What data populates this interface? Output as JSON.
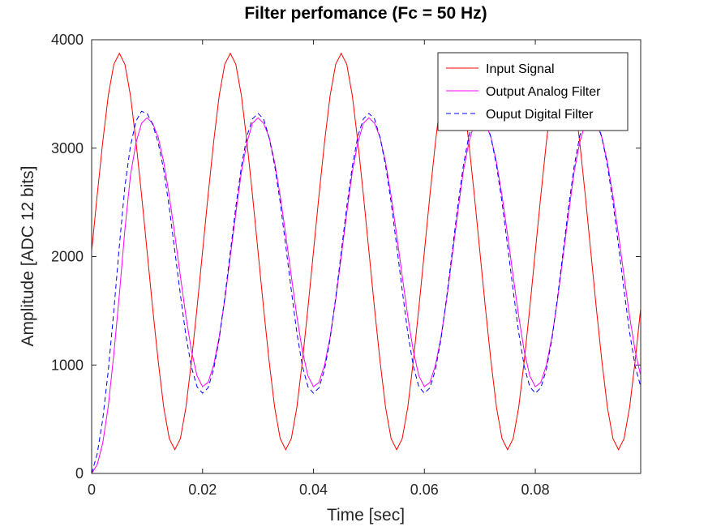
{
  "chart_data": {
    "type": "line",
    "title": "Filter perfomance (Fc = 50 Hz)",
    "xlabel": "Time [sec]",
    "ylabel": "Amplitude [ADC 12 bits]",
    "xlim": [
      0,
      0.099
    ],
    "ylim": [
      0,
      4000
    ],
    "xticks": [
      0,
      0.02,
      0.04,
      0.06,
      0.08
    ],
    "xtick_labels": [
      "0",
      "0.02",
      "0.04",
      "0.06",
      "0.08"
    ],
    "yticks": [
      0,
      1000,
      2000,
      3000,
      4000
    ],
    "ytick_labels": [
      "0",
      "1000",
      "2000",
      "3000",
      "4000"
    ],
    "grid": false,
    "legend_position": "top-right",
    "sample_period": 0.001,
    "series": [
      {
        "name": "Input Signal",
        "color": "#ff0000",
        "dash": "solid",
        "x_start": 0,
        "values": [
          2047,
          2568,
          3058,
          3485,
          3773,
          3875,
          3773,
          3485,
          3058,
          2568,
          2047,
          1526,
          1036,
          609,
          321,
          219,
          321,
          609,
          1036,
          1526,
          2047,
          2568,
          3058,
          3485,
          3773,
          3875,
          3773,
          3485,
          3058,
          2568,
          2047,
          1526,
          1036,
          609,
          321,
          219,
          321,
          609,
          1036,
          1526,
          2047,
          2568,
          3058,
          3485,
          3773,
          3875,
          3773,
          3485,
          3058,
          2568,
          2047,
          1526,
          1036,
          609,
          321,
          219,
          321,
          609,
          1036,
          1526,
          2047,
          2568,
          3058,
          3485,
          3773,
          3875,
          3773,
          3485,
          3058,
          2568,
          2047,
          1526,
          1036,
          609,
          321,
          219,
          321,
          609,
          1036,
          1526,
          2047,
          2568,
          3058,
          3485,
          3773,
          3875,
          3773,
          3485,
          3058,
          2568,
          2047,
          1526,
          1036,
          609,
          321,
          219,
          321,
          609,
          1036,
          1526
        ]
      },
      {
        "name": "Output Analog Filter",
        "color": "#ff00ff",
        "dash": "solid",
        "x_start": 0,
        "values": [
          0,
          80,
          280,
          620,
          1100,
          1650,
          2250,
          2750,
          3050,
          3230,
          3280,
          3230,
          3100,
          2870,
          2560,
          2200,
          1820,
          1450,
          1130,
          900,
          800,
          840,
          1000,
          1260,
          1600,
          2000,
          2400,
          2780,
          3050,
          3230,
          3280,
          3230,
          3100,
          2870,
          2560,
          2200,
          1820,
          1450,
          1130,
          900,
          800,
          840,
          1000,
          1260,
          1600,
          2000,
          2400,
          2780,
          3050,
          3230,
          3280,
          3230,
          3100,
          2870,
          2560,
          2200,
          1820,
          1450,
          1130,
          900,
          800,
          840,
          1000,
          1260,
          1600,
          2000,
          2400,
          2780,
          3050,
          3230,
          3280,
          3230,
          3100,
          2870,
          2560,
          2200,
          1820,
          1450,
          1130,
          900,
          800,
          840,
          1000,
          1260,
          1600,
          2000,
          2400,
          2780,
          3050,
          3230,
          3280,
          3230,
          3100,
          2870,
          2560,
          2200,
          1820,
          1450,
          1130,
          900
        ]
      },
      {
        "name": "Ouput Digital Filter",
        "color": "#0000ff",
        "dash": "dashed",
        "x_start": 0,
        "values": [
          0,
          180,
          500,
          950,
          1500,
          2100,
          2650,
          3020,
          3250,
          3340,
          3320,
          3220,
          3050,
          2800,
          2450,
          2050,
          1650,
          1270,
          980,
          800,
          740,
          790,
          960,
          1240,
          1620,
          2040,
          2460,
          2830,
          3110,
          3270,
          3320,
          3270,
          3100,
          2840,
          2500,
          2100,
          1690,
          1300,
          990,
          800,
          740,
          790,
          960,
          1240,
          1620,
          2040,
          2460,
          2830,
          3110,
          3270,
          3320,
          3270,
          3100,
          2840,
          2500,
          2100,
          1690,
          1300,
          990,
          800,
          740,
          790,
          960,
          1240,
          1620,
          2040,
          2460,
          2830,
          3110,
          3270,
          3320,
          3270,
          3100,
          2840,
          2500,
          2100,
          1690,
          1300,
          990,
          800,
          740,
          790,
          960,
          1240,
          1620,
          2040,
          2460,
          2830,
          3110,
          3270,
          3320,
          3270,
          3100,
          2840,
          2500,
          2100,
          1690,
          1300,
          990,
          800
        ]
      }
    ]
  }
}
